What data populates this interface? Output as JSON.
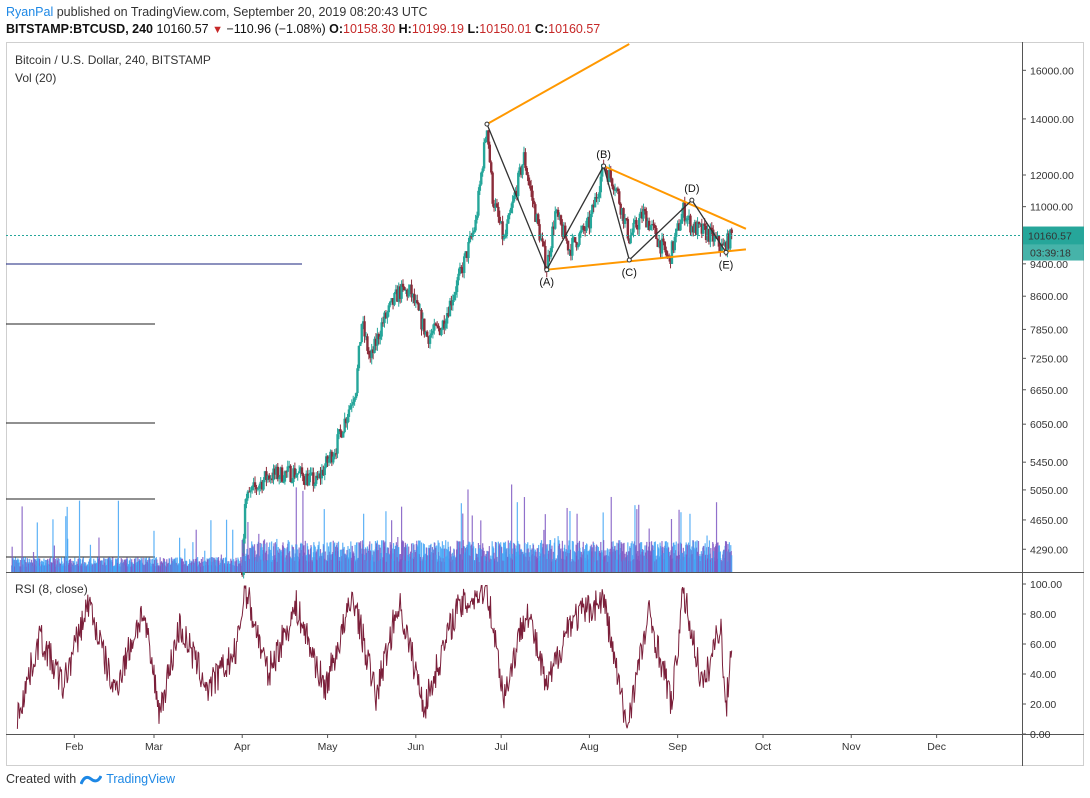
{
  "header": {
    "author": "RyanPal",
    "published": "published on TradingView.com, September 20, 2019 08:20:43 UTC",
    "symbol": "BITSTAMP:BTCUSD, 240",
    "last": "10160.57",
    "change": "−110.96 (−1.08%)",
    "o_label": "O:",
    "o": "10158.30",
    "h_label": "H:",
    "h": "10199.19",
    "l_label": "L:",
    "l": "10150.01",
    "c_label": "C:",
    "c": "10160.57"
  },
  "footer": {
    "created_with": "Created with",
    "brand": "TradingView"
  },
  "colors": {
    "up": "#26a69a",
    "down": "#8b2c3a",
    "vol_up": "#42a5f5",
    "vol_down": "#7e57c2",
    "trend": "#ff9800",
    "wave": "#333333",
    "rsi": "#7b1f3a",
    "price_line": "#26a69a",
    "hline": "#1a237e"
  },
  "chart_data": [
    {
      "type": "line",
      "title": "Bitcoin / U.S. Dollar, 240, BITSTAMP",
      "subtitle": "Vol (20)",
      "scale": "log",
      "ylim": [
        4030,
        17200
      ],
      "y_ticks": [
        "16000.00",
        "14000.00",
        "12000.00",
        "11000.00",
        "9400.00",
        "8600.00",
        "7850.00",
        "7250.00",
        "6650.00",
        "6050.00",
        "5450.00",
        "5050.00",
        "4650.00",
        "4290.00"
      ],
      "x_ticks": [
        "Feb",
        "Mar",
        "Apr",
        "May",
        "Jun",
        "Jul",
        "Aug",
        "Sep",
        "Oct",
        "Nov",
        "Dec"
      ],
      "last_price": "10160.57",
      "countdown": "03:39:18",
      "series": [
        {
          "values": [
            [
              "2019-04-01",
              4100
            ],
            [
              "2019-04-02",
              4900
            ],
            [
              "2019-04-05",
              5050
            ],
            [
              "2019-04-10",
              5250
            ],
            [
              "2019-04-20",
              5300
            ],
            [
              "2019-04-27",
              5150
            ],
            [
              "2019-05-04",
              5700
            ],
            [
              "2019-05-11",
              6700
            ],
            [
              "2019-05-13",
              8000
            ],
            [
              "2019-05-16",
              7200
            ],
            [
              "2019-05-20",
              7950
            ],
            [
              "2019-05-26",
              8700
            ],
            [
              "2019-05-30",
              8700
            ],
            [
              "2019-06-05",
              7700
            ],
            [
              "2019-06-10",
              7900
            ],
            [
              "2019-06-17",
              9200
            ],
            [
              "2019-06-22",
              10500
            ],
            [
              "2019-06-26",
              13800
            ],
            [
              "2019-06-28",
              11300
            ],
            [
              "2019-07-02",
              10000
            ],
            [
              "2019-07-09",
              12600
            ],
            [
              "2019-07-12",
              11200
            ],
            [
              "2019-07-17",
              9300
            ],
            [
              "2019-07-20",
              10800
            ],
            [
              "2019-07-25",
              9800
            ],
            [
              "2019-08-01",
              10500
            ],
            [
              "2019-08-06",
              12300
            ],
            [
              "2019-08-10",
              11700
            ],
            [
              "2019-08-15",
              10100
            ],
            [
              "2019-08-20",
              10800
            ],
            [
              "2019-08-29",
              9500
            ],
            [
              "2019-09-03",
              10900
            ],
            [
              "2019-09-06",
              10400
            ],
            [
              "2019-09-12",
              10200
            ],
            [
              "2019-09-17",
              9800
            ],
            [
              "2019-09-20",
              10160
            ]
          ]
        }
      ],
      "wave_labels": [
        {
          "label": "(A)",
          "x": "2019-07-17",
          "y": 9250
        },
        {
          "label": "(B)",
          "x": "2019-08-06",
          "y": 12300
        },
        {
          "label": "(C)",
          "x": "2019-08-15",
          "y": 9500
        },
        {
          "label": "(D)",
          "x": "2019-09-06",
          "y": 11200
        },
        {
          "label": "(E)",
          "x": "2019-09-18",
          "y": 9700
        }
      ]
    },
    {
      "type": "line",
      "title": "RSI (8, close)",
      "ylim": [
        0,
        100
      ],
      "y_ticks": [
        "100.00",
        "80.00",
        "60.00",
        "40.00",
        "20.00",
        "0.00"
      ],
      "series": [
        {
          "values": [
            [
              "2019-01-12",
              12
            ],
            [
              "2019-01-20",
              65
            ],
            [
              "2019-01-28",
              32
            ],
            [
              "2019-02-06",
              88
            ],
            [
              "2019-02-15",
              28
            ],
            [
              "2019-02-25",
              82
            ],
            [
              "2019-03-03",
              15
            ],
            [
              "2019-03-10",
              72
            ],
            [
              "2019-03-20",
              30
            ],
            [
              "2019-03-30",
              55
            ],
            [
              "2019-04-02",
              98
            ],
            [
              "2019-04-10",
              40
            ],
            [
              "2019-04-20",
              85
            ],
            [
              "2019-04-30",
              30
            ],
            [
              "2019-05-10",
              92
            ],
            [
              "2019-05-18",
              25
            ],
            [
              "2019-05-26",
              88
            ],
            [
              "2019-06-04",
              18
            ],
            [
              "2019-06-15",
              82
            ],
            [
              "2019-06-26",
              98
            ],
            [
              "2019-07-02",
              25
            ],
            [
              "2019-07-10",
              85
            ],
            [
              "2019-07-17",
              30
            ],
            [
              "2019-07-25",
              75
            ],
            [
              "2019-08-06",
              90
            ],
            [
              "2019-08-14",
              5
            ],
            [
              "2019-08-22",
              80
            ],
            [
              "2019-08-30",
              20
            ],
            [
              "2019-09-03",
              95
            ],
            [
              "2019-09-10",
              30
            ],
            [
              "2019-09-16",
              75
            ],
            [
              "2019-09-18",
              15
            ],
            [
              "2019-09-20",
              63
            ]
          ]
        }
      ]
    }
  ]
}
